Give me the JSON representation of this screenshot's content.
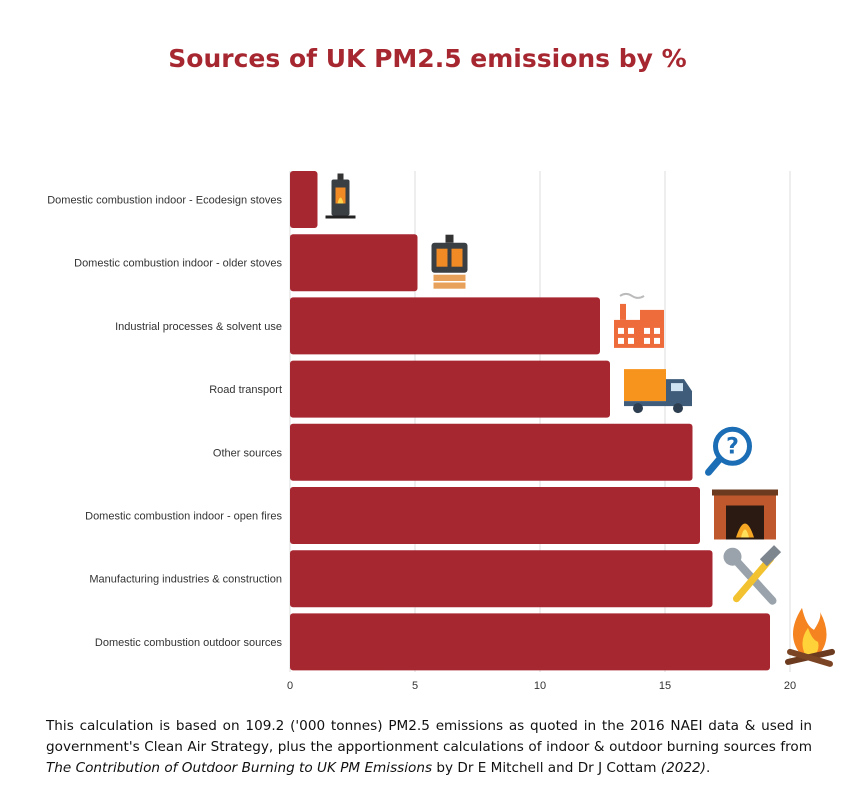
{
  "chart_data": {
    "type": "bar",
    "orientation": "horizontal",
    "title": "Sources of UK PM2.5 emissions by %",
    "categories": [
      "Domestic combustion indoor - Ecodesign stoves",
      "Domestic combustion indoor - older stoves",
      "Industrial processes & solvent use",
      "Road transport",
      "Other sources",
      "Domestic combustion indoor - open fires",
      "Manufacturing industries & construction",
      "Domestic combustion outdoor sources"
    ],
    "values": [
      1.1,
      5.1,
      12.4,
      12.8,
      16.1,
      16.4,
      16.9,
      19.2
    ],
    "xticks": [
      0,
      5,
      10,
      15,
      20
    ],
    "xlim": [
      0,
      21
    ],
    "grid": true,
    "bar_color": "#a72730",
    "icons": [
      "ecodesign-stove-icon",
      "wood-stove-icon",
      "factory-icon",
      "truck-icon",
      "magnifier-question-icon",
      "fireplace-icon",
      "hammer-wrench-icon",
      "campfire-icon"
    ]
  },
  "caption": {
    "part1": "This calculation is based on 109.2 ('000 tonnes) PM2.5 emissions as quoted in the 2016 NAEI data & used in government's Clean Air Strategy, plus the apportionment calculations of indoor & outdoor burning sources from ",
    "italic": "The Contribution of Outdoor Burning to UK PM Emissions",
    "part2": " by Dr E Mitchell and Dr J Cottam ",
    "year": "(2022)",
    "end": "."
  }
}
